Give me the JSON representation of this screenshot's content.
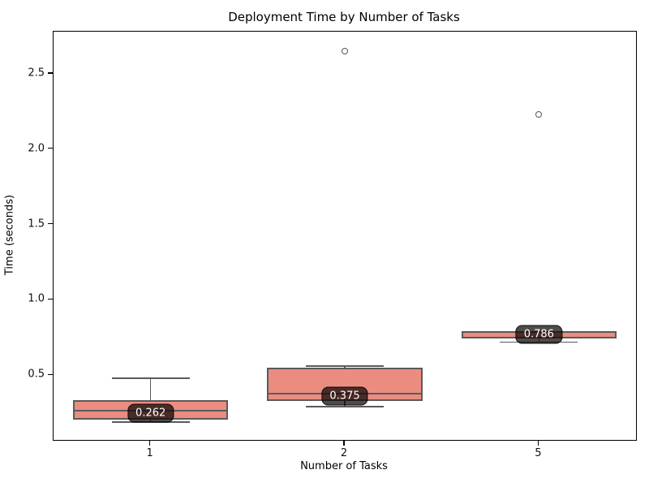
{
  "chart_data": {
    "type": "boxplot",
    "title": "Deployment Time by Number of Tasks",
    "xlabel": "Number of Tasks",
    "ylabel": "Time (seconds)",
    "categories": [
      "1",
      "2",
      "5"
    ],
    "ylim": [
      0.07,
      2.78
    ],
    "yticks": [
      0.5,
      1.0,
      1.5,
      2.0,
      2.5
    ],
    "ytick_labels": [
      "0.5",
      "1.0",
      "1.5",
      "2.0",
      "2.5"
    ],
    "grid": false,
    "legend": "none",
    "series": [
      {
        "category": "1",
        "whisker_low": 0.19,
        "q1": 0.205,
        "median": 0.262,
        "q3": 0.335,
        "whisker_high": 0.48,
        "outliers": [],
        "median_label": "0.262"
      },
      {
        "category": "2",
        "whisker_low": 0.29,
        "q1": 0.33,
        "median": 0.375,
        "q3": 0.55,
        "whisker_high": 0.56,
        "outliers": [
          2.65
        ],
        "median_label": "0.375"
      },
      {
        "category": "5",
        "whisker_low": 0.72,
        "q1": 0.745,
        "median": 0.786,
        "q3": 0.79,
        "whisker_high": 0.79,
        "outliers": [
          2.23
        ],
        "median_label": "0.786"
      }
    ],
    "colors": {
      "box_fill": "#ea8d80",
      "box_edge": "#5a5a5a",
      "whisker": "#5a5a5a",
      "outlier_edge": "#555555",
      "annotation_text": "#ffffff",
      "annotation_bg": "#000000",
      "spine": "#000000"
    }
  }
}
